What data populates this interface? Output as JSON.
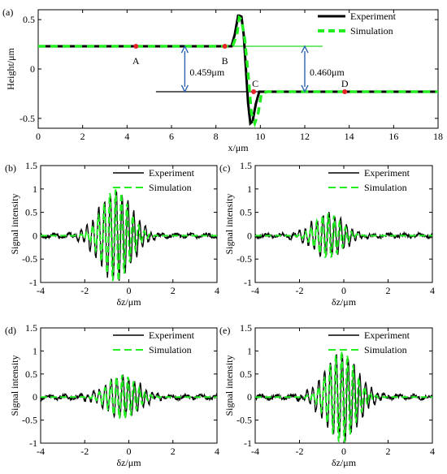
{
  "colors": {
    "experiment": "#000000",
    "simulation": "#22ee22",
    "marker": "#e8222a",
    "arrow": "#2a62b0",
    "ref_line": "#22dd22"
  },
  "chart_data": [
    {
      "panel": "(a)",
      "type": "line",
      "xlabel": "x/μm",
      "ylabel": "Height/μm",
      "xlim": [
        0,
        18
      ],
      "ylim": [
        -0.6,
        0.6
      ],
      "xticks": [
        "0",
        "2",
        "4",
        "6",
        "8",
        "10",
        "12",
        "14",
        "16",
        "18"
      ],
      "yticks": [
        "0.5",
        "0",
        "-0.5"
      ],
      "legend": {
        "position": "top-right",
        "entries": [
          "Experiment",
          "Simulation"
        ]
      },
      "series": [
        {
          "name": "Experiment",
          "x": [
            0,
            8.7,
            8.85,
            9.0,
            9.05,
            9.15,
            9.25,
            9.35,
            9.45,
            9.55,
            9.65,
            9.8,
            9.95,
            10.2,
            18
          ],
          "y": [
            0.23,
            0.23,
            0.35,
            0.54,
            0.54,
            0.53,
            0.35,
            0.0,
            -0.35,
            -0.55,
            -0.53,
            -0.35,
            -0.23,
            -0.23,
            -0.23
          ]
        },
        {
          "name": "Simulation",
          "x": [
            0,
            8.75,
            8.95,
            9.05,
            9.15,
            9.3,
            9.45,
            9.6,
            9.75,
            9.9,
            10.05,
            10.3,
            18
          ],
          "y": [
            0.23,
            0.23,
            0.35,
            0.52,
            0.5,
            0.3,
            -0.05,
            -0.45,
            -0.55,
            -0.45,
            -0.25,
            -0.23,
            -0.23
          ]
        }
      ],
      "points": [
        {
          "label": "A",
          "x": 4.4,
          "y": 0.23
        },
        {
          "label": "B",
          "x": 8.4,
          "y": 0.23
        },
        {
          "label": "C",
          "x": 9.7,
          "y": -0.23
        },
        {
          "label": "D",
          "x": 13.8,
          "y": -0.23
        }
      ],
      "annotations": [
        {
          "text": "0.459μm",
          "x": 6.6,
          "from": -0.23,
          "to": 0.23
        },
        {
          "text": "0.460μm",
          "x": 12.0,
          "from": -0.23,
          "to": 0.23
        }
      ],
      "ref_lines": [
        {
          "x0": 5.3,
          "x1": 12.8,
          "y": 0.23
        },
        {
          "x0": 5.3,
          "x1": 18.0,
          "y": -0.23
        }
      ]
    },
    {
      "panel": "(b)",
      "type": "line",
      "xlabel": "δz/μm",
      "ylabel": "Signal intensity",
      "xlim": [
        -4,
        4
      ],
      "ylim": [
        -1,
        1.5
      ],
      "xticks": [
        "-4",
        "-2",
        "0",
        "2",
        "4"
      ],
      "yticks": [
        "-1",
        "-0.5",
        "0",
        "0.5",
        "1",
        "1.5"
      ],
      "legend": {
        "position": "top-right",
        "entries": [
          "Experiment",
          "Simulation"
        ]
      },
      "center": -0.6,
      "amplitude": 1.0,
      "width": 0.85,
      "period": 0.26
    },
    {
      "panel": "(c)",
      "type": "line",
      "xlabel": "δz/μm",
      "ylabel": "Signal intensity",
      "xlim": [
        -4,
        4
      ],
      "ylim": [
        -1,
        1.5
      ],
      "xticks": [
        "-4",
        "-2",
        "0",
        "2",
        "4"
      ],
      "yticks": [
        "-1",
        "-0.5",
        "0",
        "0.5",
        "1",
        "1.5"
      ],
      "legend": {
        "position": "top-right",
        "entries": [
          "Experiment",
          "Simulation"
        ]
      },
      "center": -0.7,
      "amplitude": 0.48,
      "width": 0.8,
      "period": 0.26
    },
    {
      "panel": "(d)",
      "type": "line",
      "xlabel": "δz/μm",
      "ylabel": "Signal intensity",
      "xlim": [
        -4,
        4
      ],
      "ylim": [
        -1,
        1.5
      ],
      "xticks": [
        "-4",
        "-2",
        "0",
        "2",
        "4"
      ],
      "yticks": [
        "-1",
        "-0.5",
        "0",
        "0.5",
        "1",
        "1.5"
      ],
      "legend": {
        "position": "top-right",
        "entries": [
          "Experiment",
          "Simulation"
        ]
      },
      "center": -0.3,
      "amplitude": 0.48,
      "width": 0.85,
      "period": 0.26
    },
    {
      "panel": "(e)",
      "type": "line",
      "xlabel": "δz/μm",
      "ylabel": "Signal intensity",
      "xlim": [
        -4,
        4
      ],
      "ylim": [
        -1,
        1.5
      ],
      "xticks": [
        "-4",
        "-2",
        "0",
        "2",
        "4"
      ],
      "yticks": [
        "-1",
        "-0.5",
        "0",
        "0.5",
        "1",
        "1.5"
      ],
      "legend": {
        "position": "top-right",
        "entries": [
          "Experiment",
          "Simulation"
        ]
      },
      "center": -0.1,
      "amplitude": 1.0,
      "width": 0.85,
      "period": 0.26
    }
  ]
}
